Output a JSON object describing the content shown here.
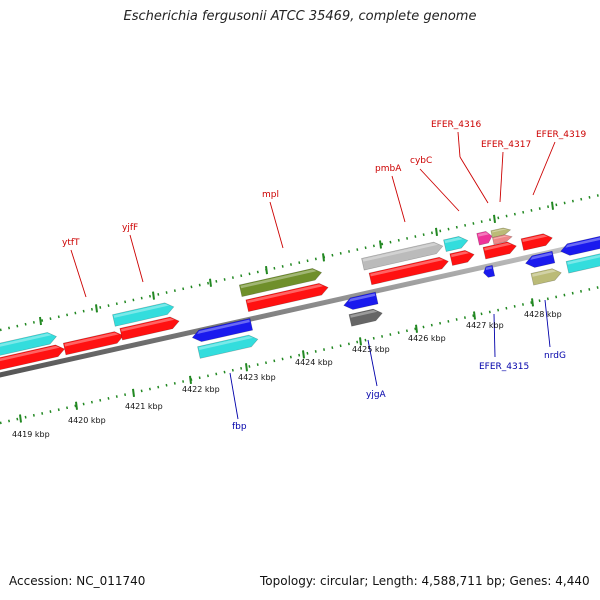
{
  "title": "Escherichia fergusonii ATCC 35469, complete genome",
  "accession": "Accession: NC_011740",
  "summary": "Topology: circular; Length: 4,588,711 bp; Genes: 4,440",
  "colors": {
    "red": "#ff1111",
    "cyan": "#33dddd",
    "blue": "#1a1aee",
    "olive": "#6f8f2a",
    "gray": "#bbbbbb",
    "darkgray": "#666666",
    "pink": "#ee3399",
    "salmon": "#ee8888",
    "khaki": "#bbbb77",
    "tick": "#228822",
    "label_forward": "#cc0000",
    "label_reverse": "#0000aa"
  },
  "ticks": [
    "4419 kbp",
    "4420 kbp",
    "4421 kbp",
    "4422 kbp",
    "4423 kbp",
    "4424 kbp",
    "4425 kbp",
    "4426 kbp",
    "4427 kbp",
    "4428 kbp"
  ],
  "forward_labels": [
    "ytfT",
    "yjfF",
    "mpl",
    "pmbA",
    "cybC",
    "EFER_4316",
    "EFER_4317",
    "EFER_4319"
  ],
  "reverse_labels": [
    "fbp",
    "yjgA",
    "EFER_4315",
    "nrdG"
  ]
}
